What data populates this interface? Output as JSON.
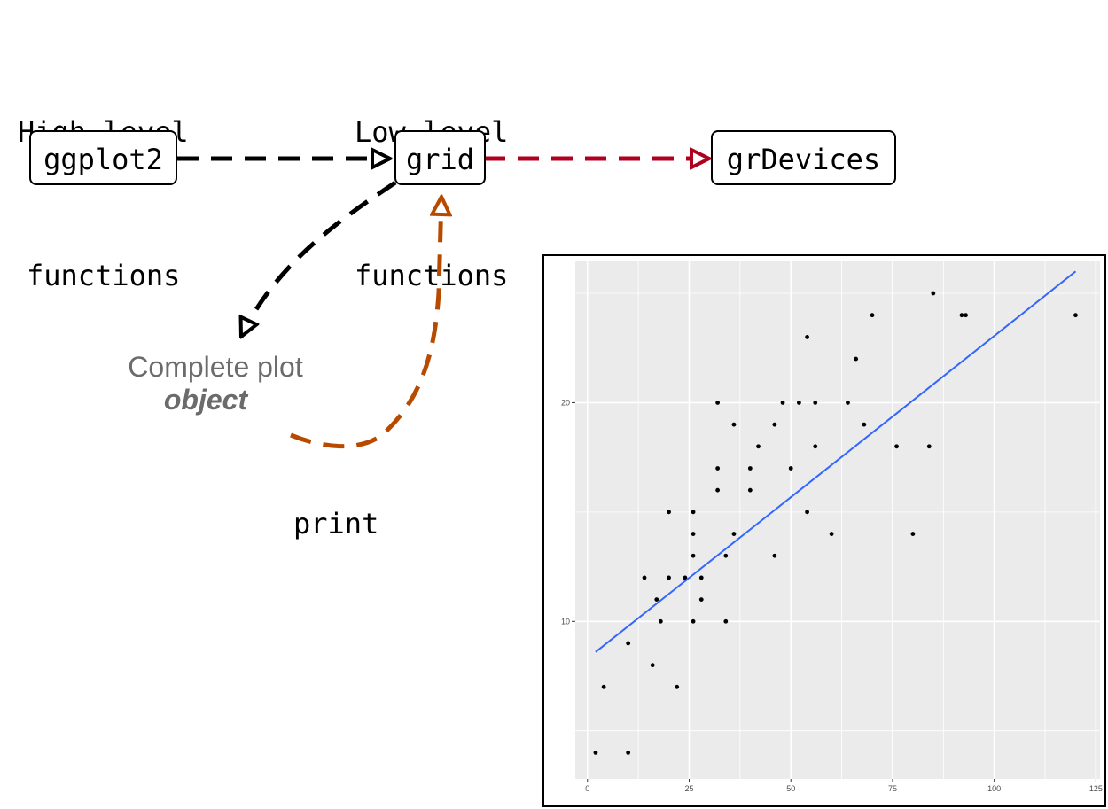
{
  "headings": {
    "high_level": [
      "High-level",
      "functions"
    ],
    "low_level": [
      "Low-level",
      "functions"
    ]
  },
  "nodes": {
    "ggplot2": "ggplot2",
    "grid": "grid",
    "grDevices": "grDevices"
  },
  "caption": {
    "line1": "Complete plot",
    "line2": "object"
  },
  "print_label": "print",
  "colors": {
    "black_arrow": "#000000",
    "red_arrow": "#b00020",
    "orange_arrow": "#b84a00",
    "panel_bg": "#ebebeb",
    "grid_line": "#ffffff",
    "fit_line": "#3366ff"
  },
  "chart_data": {
    "type": "scatter",
    "title": "",
    "xlabel": "",
    "ylabel": "",
    "xlim": [
      -3,
      126
    ],
    "ylim": [
      2.8,
      26.5
    ],
    "x_ticks": [
      0,
      25,
      50,
      75,
      100,
      125
    ],
    "y_ticks": [
      10,
      20
    ],
    "grid": true,
    "points": [
      [
        2,
        4
      ],
      [
        4,
        7
      ],
      [
        10,
        4
      ],
      [
        10,
        9
      ],
      [
        16,
        8
      ],
      [
        22,
        7
      ],
      [
        14,
        12
      ],
      [
        17,
        11
      ],
      [
        18,
        10
      ],
      [
        20,
        15
      ],
      [
        20,
        12
      ],
      [
        24,
        12
      ],
      [
        26,
        10
      ],
      [
        26,
        13
      ],
      [
        26,
        14
      ],
      [
        26,
        15
      ],
      [
        28,
        12
      ],
      [
        28,
        11
      ],
      [
        32,
        16
      ],
      [
        32,
        17
      ],
      [
        32,
        20
      ],
      [
        34,
        10
      ],
      [
        34,
        13
      ],
      [
        36,
        14
      ],
      [
        36,
        19
      ],
      [
        40,
        16
      ],
      [
        40,
        17
      ],
      [
        42,
        18
      ],
      [
        46,
        13
      ],
      [
        46,
        19
      ],
      [
        48,
        20
      ],
      [
        50,
        17
      ],
      [
        52,
        20
      ],
      [
        54,
        15
      ],
      [
        54,
        23
      ],
      [
        56,
        18
      ],
      [
        56,
        20
      ],
      [
        60,
        14
      ],
      [
        64,
        20
      ],
      [
        66,
        22
      ],
      [
        68,
        19
      ],
      [
        70,
        24
      ],
      [
        76,
        18
      ],
      [
        80,
        14
      ],
      [
        84,
        18
      ],
      [
        85,
        25
      ],
      [
        92,
        24
      ],
      [
        93,
        24
      ],
      [
        120,
        24
      ]
    ],
    "fit_line": {
      "x": [
        2,
        120
      ],
      "y": [
        8.6,
        26.0
      ]
    }
  }
}
